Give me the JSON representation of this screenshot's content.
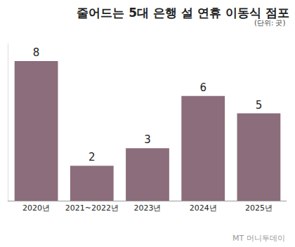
{
  "chart_data": {
    "type": "bar",
    "title": "줄어드는 5대 은행 설 연휴 이동식 점포",
    "subtitle": "(단위: 곳)",
    "categories": [
      "2020년",
      "2021~2022년",
      "2023년",
      "2024년",
      "2025년"
    ],
    "values": [
      8,
      2,
      3,
      6,
      5
    ],
    "color": "#8c6d7b",
    "ylim": [
      0,
      9
    ],
    "grid": false,
    "data_labels": true,
    "tick_labels": "x",
    "annotations": [
      "MT 머니투데이"
    ]
  }
}
